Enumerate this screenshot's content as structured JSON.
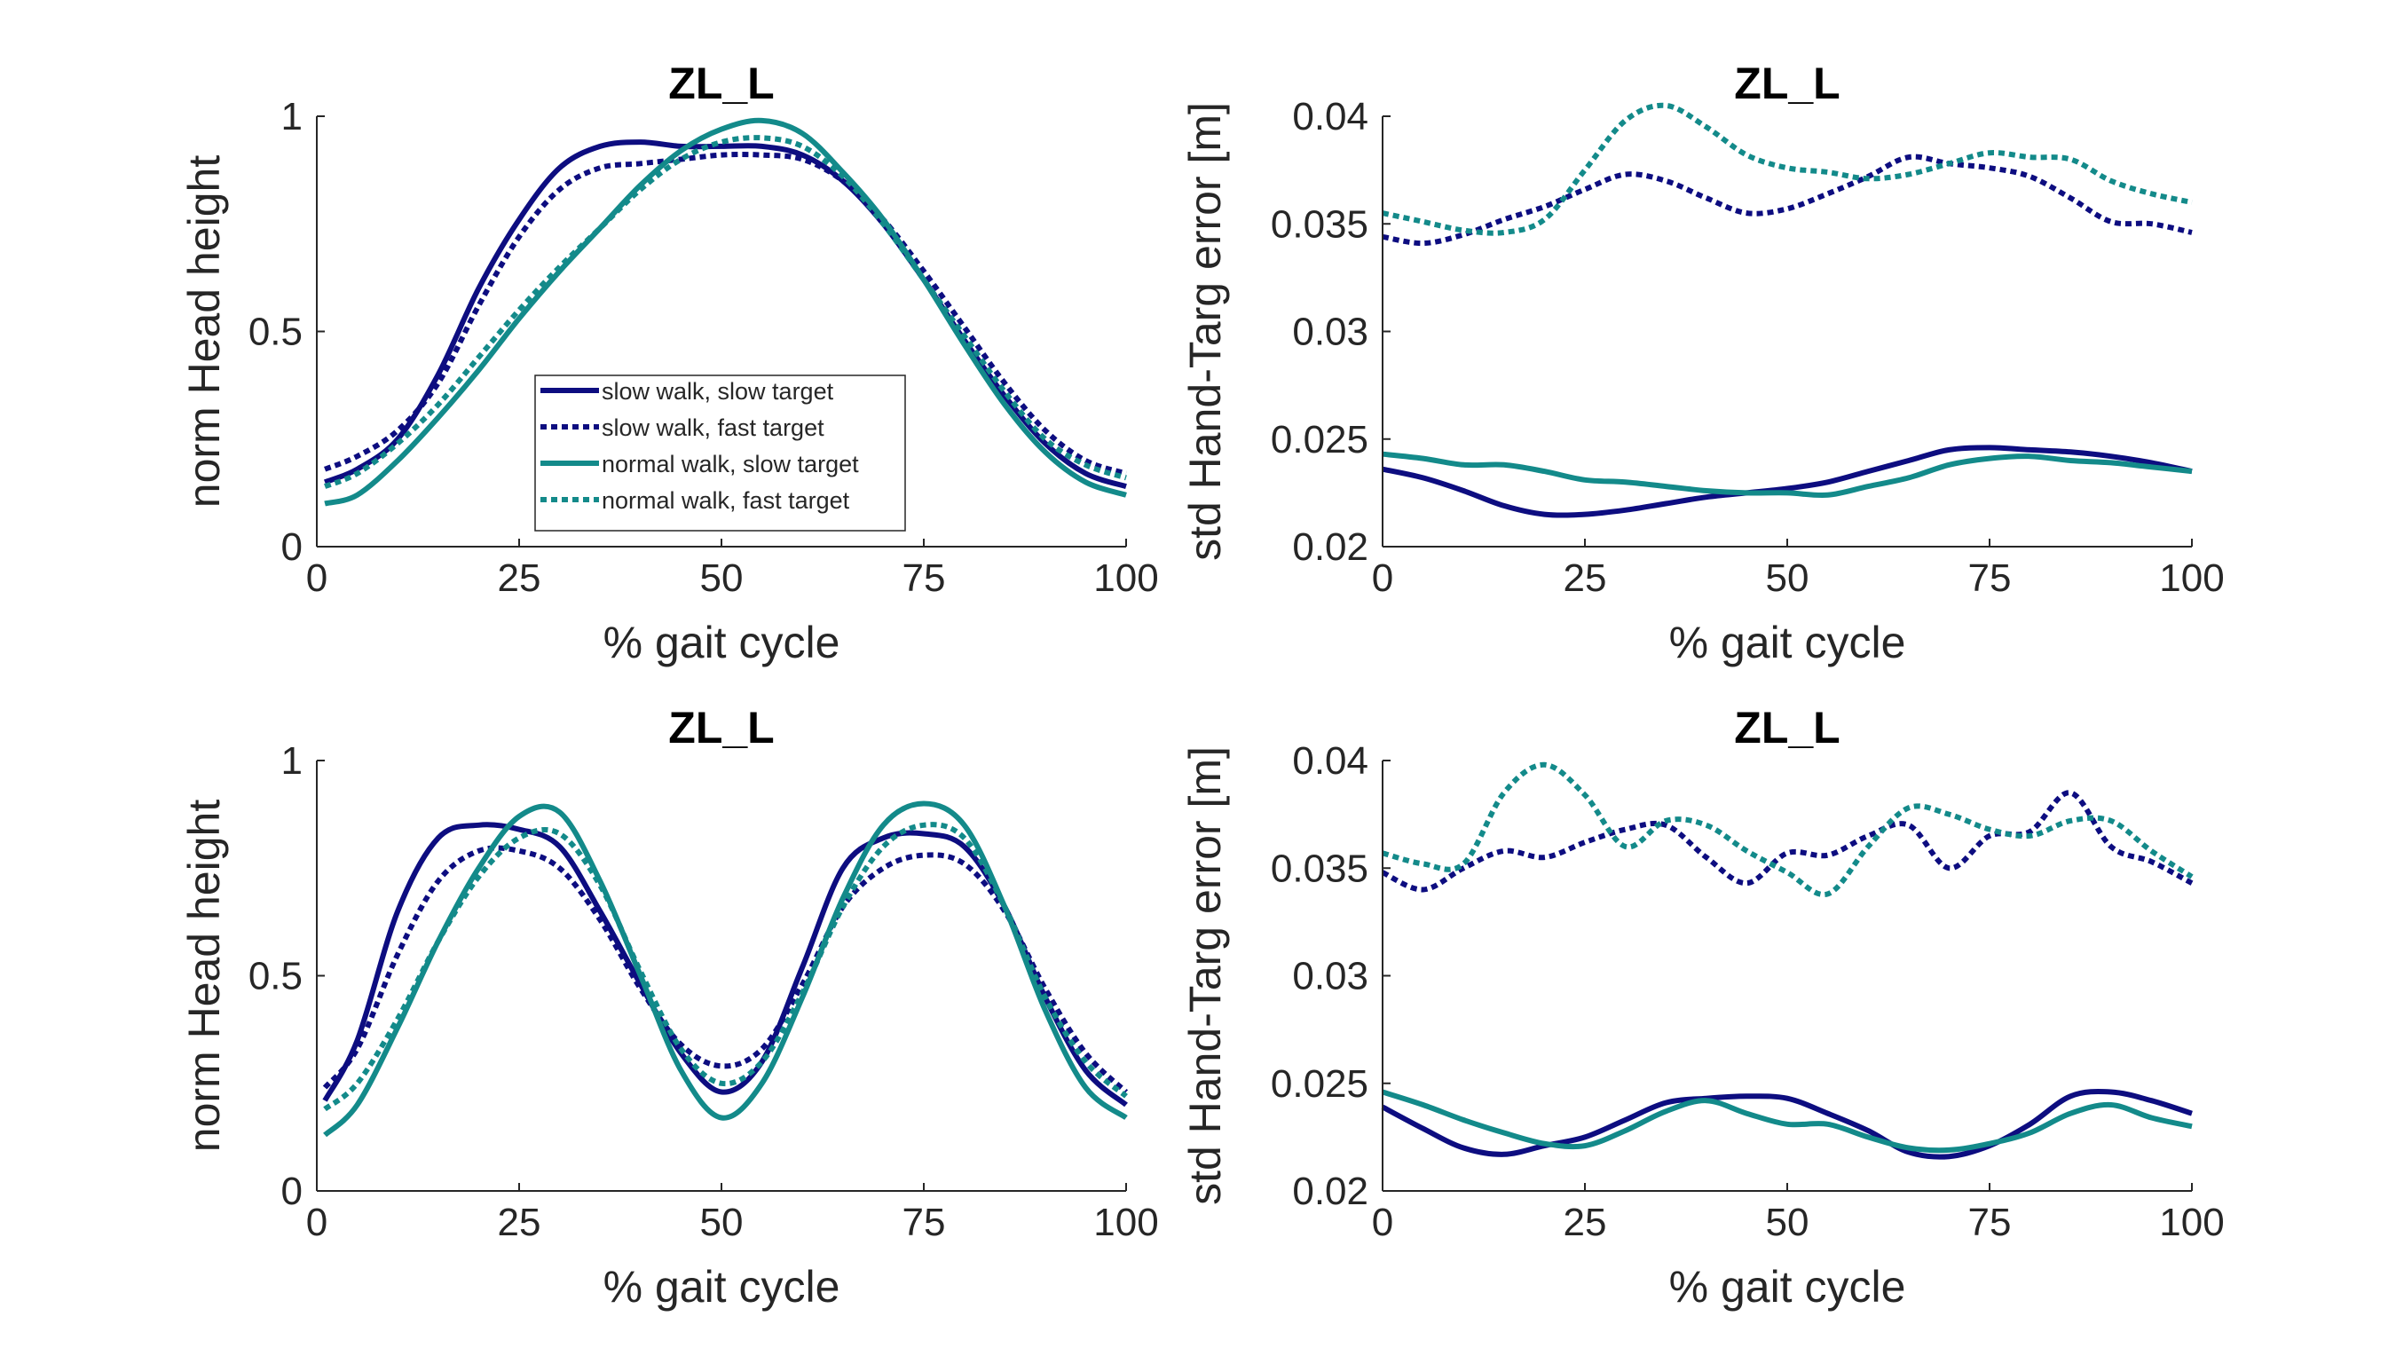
{
  "chart_data": [
    {
      "type": "line",
      "title": "ZL_L",
      "xlabel": "% gait cycle",
      "ylabel": "norm Head height",
      "xlim": [
        0,
        100
      ],
      "ylim": [
        0,
        1
      ],
      "xticks": [
        "0",
        "25",
        "50",
        "75",
        "100"
      ],
      "yticks": [
        "0",
        "0.5",
        "1"
      ],
      "x": [
        1,
        5,
        10,
        15,
        20,
        25,
        30,
        35,
        40,
        45,
        50,
        55,
        60,
        65,
        70,
        75,
        80,
        85,
        90,
        95,
        100
      ],
      "legend": {
        "placement": "center"
      },
      "series": [
        {
          "name": "slow walk, slow target",
          "color": "#0d0d80",
          "dash": "solid",
          "values": [
            0.15,
            0.18,
            0.25,
            0.4,
            0.6,
            0.76,
            0.88,
            0.93,
            0.94,
            0.93,
            0.93,
            0.93,
            0.91,
            0.85,
            0.75,
            0.62,
            0.48,
            0.35,
            0.24,
            0.17,
            0.14
          ]
        },
        {
          "name": "slow walk, fast target",
          "color": "#0d0d80",
          "dash": "dotted",
          "values": [
            0.18,
            0.21,
            0.27,
            0.38,
            0.56,
            0.72,
            0.83,
            0.88,
            0.89,
            0.9,
            0.91,
            0.91,
            0.9,
            0.85,
            0.76,
            0.64,
            0.51,
            0.38,
            0.27,
            0.2,
            0.17
          ]
        },
        {
          "name": "normal walk, slow target",
          "color": "#138a8a",
          "dash": "solid",
          "values": [
            0.1,
            0.12,
            0.2,
            0.3,
            0.41,
            0.53,
            0.64,
            0.74,
            0.84,
            0.92,
            0.97,
            0.99,
            0.96,
            0.87,
            0.76,
            0.62,
            0.47,
            0.33,
            0.22,
            0.15,
            0.12
          ]
        },
        {
          "name": "normal walk, fast target",
          "color": "#138a8a",
          "dash": "dotted",
          "values": [
            0.14,
            0.17,
            0.24,
            0.33,
            0.44,
            0.55,
            0.65,
            0.74,
            0.83,
            0.9,
            0.94,
            0.95,
            0.93,
            0.86,
            0.75,
            0.62,
            0.49,
            0.36,
            0.25,
            0.19,
            0.16
          ]
        }
      ]
    },
    {
      "type": "line",
      "title": "ZL_L",
      "xlabel": "% gait cycle",
      "ylabel": "std Hand-Targ error [m]",
      "xlim": [
        0,
        100
      ],
      "ylim": [
        0.02,
        0.04
      ],
      "xticks": [
        "0",
        "25",
        "50",
        "75",
        "100"
      ],
      "yticks": [
        "0.02",
        "0.025",
        "0.03",
        "0.035",
        "0.04"
      ],
      "x": [
        0,
        5,
        10,
        15,
        20,
        25,
        30,
        35,
        40,
        45,
        50,
        55,
        60,
        65,
        70,
        75,
        80,
        85,
        90,
        95,
        100
      ],
      "series": [
        {
          "name": "slow walk, slow target",
          "color": "#0d0d80",
          "dash": "solid",
          "values": [
            0.0236,
            0.0232,
            0.0226,
            0.0219,
            0.0215,
            0.0215,
            0.0217,
            0.022,
            0.0223,
            0.0225,
            0.0227,
            0.023,
            0.0235,
            0.024,
            0.0245,
            0.0246,
            0.0245,
            0.0244,
            0.0242,
            0.0239,
            0.0235
          ]
        },
        {
          "name": "slow walk, fast target",
          "color": "#0d0d80",
          "dash": "dotted",
          "values": [
            0.0344,
            0.0341,
            0.0345,
            0.0352,
            0.0358,
            0.0366,
            0.0373,
            0.037,
            0.0362,
            0.0355,
            0.0357,
            0.0364,
            0.0372,
            0.0381,
            0.0378,
            0.0376,
            0.0372,
            0.0362,
            0.0351,
            0.035,
            0.0346
          ]
        },
        {
          "name": "normal walk, slow target",
          "color": "#138a8a",
          "dash": "solid",
          "values": [
            0.0243,
            0.0241,
            0.0238,
            0.0238,
            0.0235,
            0.0231,
            0.023,
            0.0228,
            0.0226,
            0.0225,
            0.0225,
            0.0224,
            0.0228,
            0.0232,
            0.0238,
            0.0241,
            0.0242,
            0.024,
            0.0239,
            0.0237,
            0.0235
          ]
        },
        {
          "name": "normal walk, fast target",
          "color": "#138a8a",
          "dash": "dotted",
          "values": [
            0.0355,
            0.0351,
            0.0347,
            0.0346,
            0.0352,
            0.0375,
            0.0398,
            0.0405,
            0.0395,
            0.0382,
            0.0376,
            0.0374,
            0.0371,
            0.0373,
            0.0378,
            0.0383,
            0.0381,
            0.038,
            0.037,
            0.0364,
            0.036
          ]
        }
      ]
    },
    {
      "type": "line",
      "title": "ZL_L",
      "xlabel": "% gait cycle",
      "ylabel": "norm Head height",
      "xlim": [
        0,
        100
      ],
      "ylim": [
        0,
        1
      ],
      "xticks": [
        "0",
        "25",
        "50",
        "75",
        "100"
      ],
      "yticks": [
        "0",
        "0.5",
        "1"
      ],
      "x": [
        1,
        5,
        10,
        15,
        20,
        25,
        30,
        35,
        40,
        45,
        50,
        55,
        60,
        65,
        70,
        75,
        80,
        85,
        90,
        95,
        100
      ],
      "series": [
        {
          "name": "slow walk, slow target",
          "color": "#0d0d80",
          "dash": "solid",
          "values": [
            0.21,
            0.35,
            0.65,
            0.82,
            0.85,
            0.84,
            0.8,
            0.65,
            0.48,
            0.32,
            0.23,
            0.3,
            0.52,
            0.75,
            0.82,
            0.83,
            0.8,
            0.66,
            0.45,
            0.28,
            0.2
          ]
        },
        {
          "name": "slow walk, fast target",
          "color": "#0d0d80",
          "dash": "dotted",
          "values": [
            0.24,
            0.33,
            0.55,
            0.72,
            0.79,
            0.79,
            0.75,
            0.63,
            0.47,
            0.34,
            0.29,
            0.33,
            0.48,
            0.66,
            0.75,
            0.78,
            0.76,
            0.65,
            0.47,
            0.32,
            0.23
          ]
        },
        {
          "name": "normal walk, slow target",
          "color": "#138a8a",
          "dash": "solid",
          "values": [
            0.13,
            0.2,
            0.38,
            0.58,
            0.75,
            0.87,
            0.88,
            0.72,
            0.5,
            0.28,
            0.17,
            0.25,
            0.45,
            0.68,
            0.85,
            0.9,
            0.85,
            0.66,
            0.42,
            0.24,
            0.17
          ]
        },
        {
          "name": "normal walk, fast target",
          "color": "#138a8a",
          "dash": "dotted",
          "values": [
            0.19,
            0.25,
            0.4,
            0.58,
            0.73,
            0.82,
            0.83,
            0.71,
            0.51,
            0.33,
            0.25,
            0.3,
            0.46,
            0.66,
            0.8,
            0.85,
            0.82,
            0.66,
            0.45,
            0.3,
            0.22
          ]
        }
      ]
    },
    {
      "type": "line",
      "title": "ZL_L",
      "xlabel": "% gait cycle",
      "ylabel": "std Hand-Targ error [m]",
      "xlim": [
        0,
        100
      ],
      "ylim": [
        0.02,
        0.04
      ],
      "xticks": [
        "0",
        "25",
        "50",
        "75",
        "100"
      ],
      "yticks": [
        "0.02",
        "0.025",
        "0.03",
        "0.035",
        "0.04"
      ],
      "x": [
        0,
        5,
        10,
        15,
        20,
        25,
        30,
        35,
        40,
        45,
        50,
        55,
        60,
        65,
        70,
        75,
        80,
        85,
        90,
        95,
        100
      ],
      "series": [
        {
          "name": "slow walk, slow target",
          "color": "#0d0d80",
          "dash": "solid",
          "values": [
            0.0239,
            0.0229,
            0.022,
            0.0217,
            0.0221,
            0.0225,
            0.0233,
            0.0241,
            0.0243,
            0.0244,
            0.0243,
            0.0236,
            0.0228,
            0.0218,
            0.0216,
            0.0221,
            0.0231,
            0.0244,
            0.0246,
            0.0242,
            0.0236
          ]
        },
        {
          "name": "slow walk, fast target",
          "color": "#0d0d80",
          "dash": "dotted",
          "values": [
            0.0348,
            0.034,
            0.035,
            0.0358,
            0.0355,
            0.0362,
            0.0368,
            0.037,
            0.0355,
            0.0343,
            0.0357,
            0.0356,
            0.0365,
            0.037,
            0.035,
            0.0365,
            0.0367,
            0.0385,
            0.036,
            0.0353,
            0.0343
          ]
        },
        {
          "name": "normal walk, slow target",
          "color": "#138a8a",
          "dash": "solid",
          "values": [
            0.0246,
            0.024,
            0.0233,
            0.0227,
            0.0222,
            0.0221,
            0.0228,
            0.0237,
            0.0242,
            0.0236,
            0.0231,
            0.0231,
            0.0225,
            0.022,
            0.0219,
            0.0222,
            0.0227,
            0.0236,
            0.024,
            0.0234,
            0.023
          ]
        },
        {
          "name": "normal walk, fast target",
          "color": "#138a8a",
          "dash": "dotted",
          "values": [
            0.0357,
            0.0352,
            0.0352,
            0.0385,
            0.0398,
            0.0384,
            0.036,
            0.0372,
            0.037,
            0.0358,
            0.0348,
            0.0338,
            0.036,
            0.0378,
            0.0375,
            0.0368,
            0.0365,
            0.0372,
            0.0372,
            0.0358,
            0.0346
          ]
        }
      ]
    }
  ]
}
